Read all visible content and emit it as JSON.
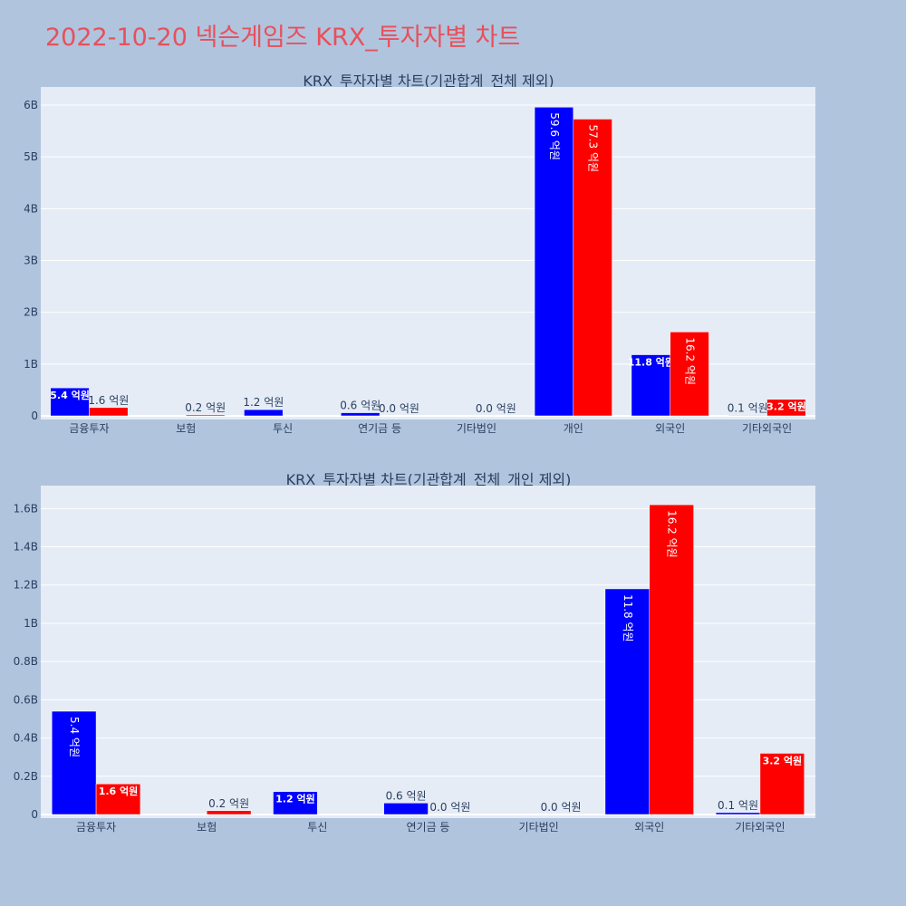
{
  "page": {
    "title": "2022-10-20 넥슨게임즈 KRX_투자자별 차트",
    "background": "#b0c4de",
    "title_color": "#e8505b"
  },
  "colors": {
    "buy": "#0000ff",
    "sell": "#ff0000",
    "plot_bg": "#e5ecf6",
    "grid": "#ffffff",
    "text": "#2a3f5f"
  },
  "chart_data": [
    {
      "type": "bar",
      "title": "KRX_투자자별 차트(기관합계_전체 제외)",
      "categories": [
        "금융투자",
        "보험",
        "투신",
        "연기금 등",
        "기타법인",
        "개인",
        "외국인",
        "기타외국인"
      ],
      "series": [
        {
          "color": "#0000ff",
          "values": [
            540000000,
            0,
            120000000,
            60000000,
            0,
            5960000000,
            1180000000,
            10000000
          ],
          "labels": [
            "5.4 억원",
            "",
            "1.2 억원",
            "0.6 억원",
            "",
            "59.6 억원",
            "11.8 억원",
            "0.1 억원"
          ]
        },
        {
          "color": "#ff0000",
          "values": [
            160000000,
            20000000,
            0,
            0,
            0,
            5730000000,
            1620000000,
            320000000
          ],
          "labels": [
            "1.6 억원",
            "0.2 억원",
            "",
            "0.0 억원",
            "0.0 억원",
            "57.3 억원",
            "16.2 억원",
            "3.2 억원"
          ]
        }
      ],
      "ylim": [
        0,
        6350000000
      ],
      "yticks": [
        0,
        1000000000,
        2000000000,
        3000000000,
        4000000000,
        5000000000,
        6000000000
      ],
      "ytick_labels": [
        "0",
        "1B",
        "2B",
        "3B",
        "4B",
        "5B",
        "6B"
      ],
      "grid": true
    },
    {
      "type": "bar",
      "title": "KRX_투자자별 차트(기관합계_전체_개인 제외)",
      "categories": [
        "금융투자",
        "보험",
        "투신",
        "연기금 등",
        "기타법인",
        "외국인",
        "기타외국인"
      ],
      "series": [
        {
          "color": "#0000ff",
          "values": [
            540000000,
            0,
            120000000,
            60000000,
            0,
            1180000000,
            10000000
          ],
          "labels": [
            "5.4 억원",
            "",
            "1.2 억원",
            "0.6 억원",
            "",
            "11.8 억원",
            "0.1 억원"
          ]
        },
        {
          "color": "#ff0000",
          "values": [
            160000000,
            20000000,
            0,
            0,
            0,
            1620000000,
            320000000
          ],
          "labels": [
            "1.6 억원",
            "0.2 억원",
            "",
            "0.0 억원",
            "0.0 억원",
            "16.2 억원",
            "3.2 억원"
          ]
        }
      ],
      "ylim": [
        0,
        1720000000
      ],
      "yticks": [
        0,
        200000000,
        400000000,
        600000000,
        800000000,
        1000000000,
        1200000000,
        1400000000,
        1600000000
      ],
      "ytick_labels": [
        "0",
        "0.2B",
        "0.4B",
        "0.6B",
        "0.8B",
        "1B",
        "1.2B",
        "1.4B",
        "1.6B"
      ],
      "grid": true
    }
  ]
}
